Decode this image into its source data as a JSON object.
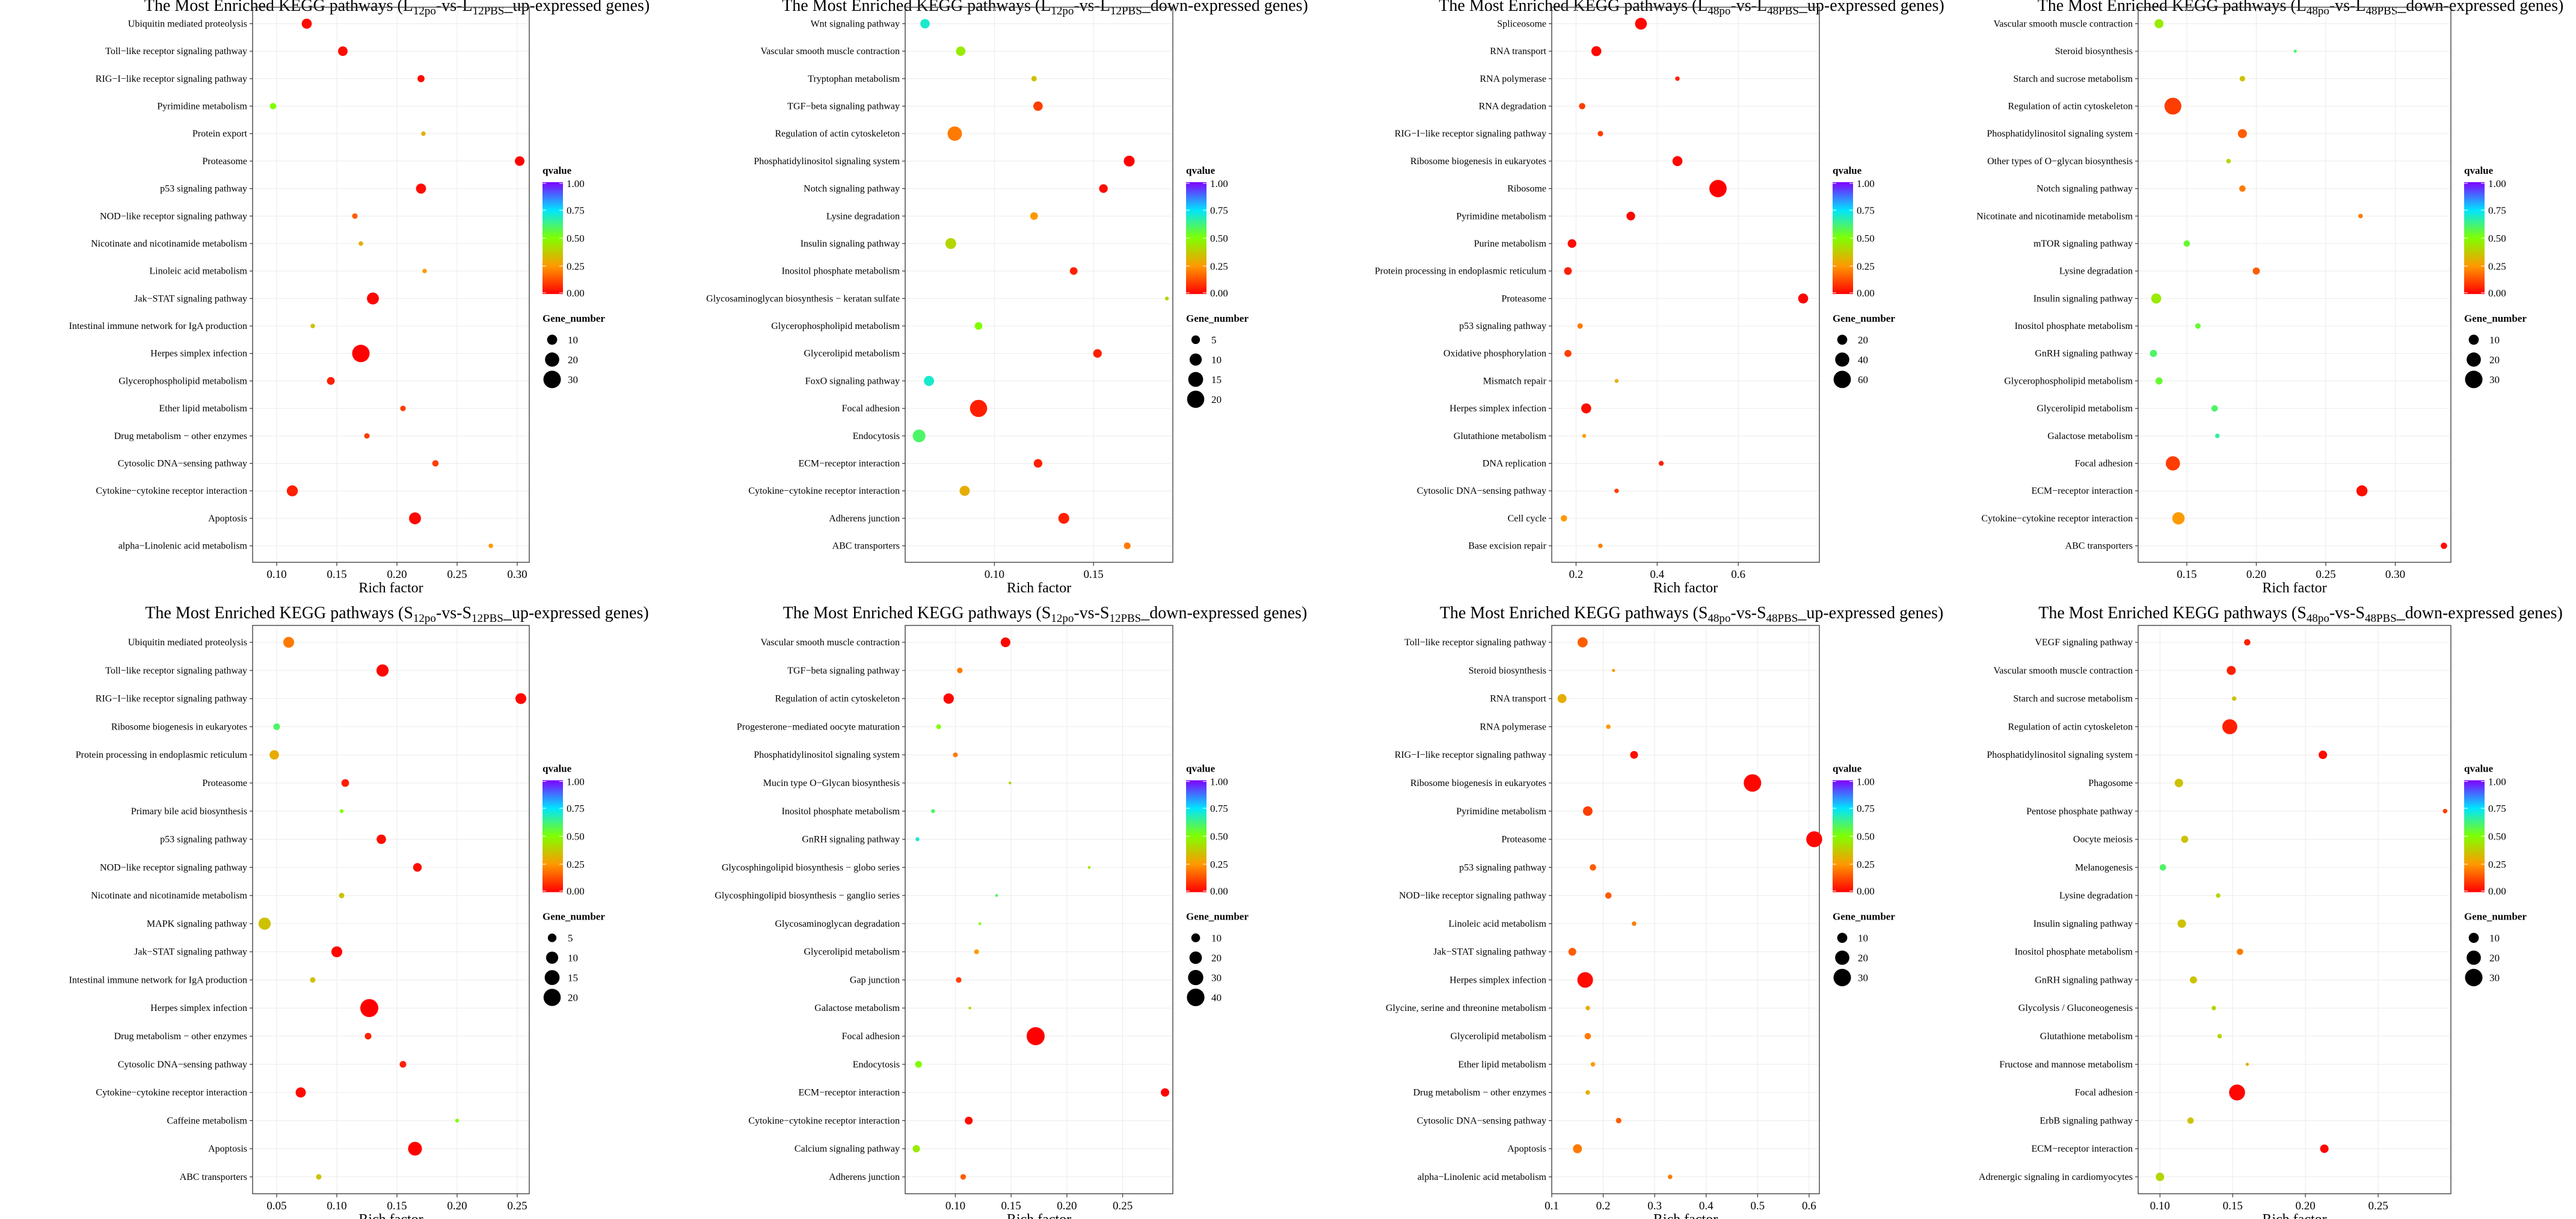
{
  "legend_labels": {
    "qvalue": "qvalue",
    "gene_number": "Gene_number",
    "qvalue_ticks": [
      "0.00",
      "0.25",
      "0.50",
      "0.75",
      "1.00"
    ]
  },
  "colorbar": {
    "stops": [
      {
        "offset": 0,
        "color": "#ff0000"
      },
      {
        "offset": 0.25,
        "color": "#ff9900"
      },
      {
        "offset": 0.5,
        "color": "#80ff00"
      },
      {
        "offset": 0.75,
        "color": "#00e5ff"
      },
      {
        "offset": 1,
        "color": "#8000ff"
      }
    ]
  },
  "chart_data": [
    {
      "type": "scatter",
      "title_parts": [
        "The Most Enriched KEGG pathways (L",
        "12po",
        "-vs-L",
        "12PBS",
        "_up-expressed genes)"
      ],
      "xlabel": "Rich factor",
      "xlim": [
        0.08,
        0.31
      ],
      "xticks": [
        0.1,
        0.15,
        0.2,
        0.25,
        0.3
      ],
      "xtick_labels": [
        "0.10",
        "0.15",
        "0.20",
        "0.25",
        "0.30"
      ],
      "size_legend": [
        10,
        20,
        30
      ],
      "size_max": 32,
      "categories": [
        "Ubiquitin mediated proteolysis",
        "Toll−like receptor signaling pathway",
        "RIG−I−like receptor signaling pathway",
        "Pyrimidine metabolism",
        "Protein export",
        "Proteasome",
        "p53 signaling pathway",
        "NOD−like receptor signaling pathway",
        "Nicotinate and nicotinamide metabolism",
        "Linoleic acid metabolism",
        "Jak−STAT signaling pathway",
        "Intestinal immune network for IgA production",
        "Herpes simplex infection",
        "Glycerophospholipid metabolism",
        "Ether lipid metabolism",
        "Drug metabolism − other enzymes",
        "Cytosolic DNA−sensing pathway",
        "Cytokine−cytokine receptor interaction",
        "Apoptosis",
        "alpha−Linolenic acid metabolism"
      ],
      "x": [
        0.125,
        0.155,
        0.22,
        0.097,
        0.222,
        0.302,
        0.22,
        0.165,
        0.17,
        0.223,
        0.18,
        0.13,
        0.17,
        0.145,
        0.205,
        0.175,
        0.232,
        0.113,
        0.215,
        0.278
      ],
      "gene_number": [
        10,
        9,
        5,
        4,
        2,
        9,
        10,
        3,
        2,
        2,
        14,
        2,
        30,
        6,
        3,
        3,
        4,
        12,
        14,
        2
      ],
      "qvalue": [
        0.02,
        0.02,
        0.02,
        0.5,
        0.3,
        0.0,
        0.02,
        0.15,
        0.3,
        0.25,
        0.01,
        0.35,
        0.0,
        0.05,
        0.1,
        0.1,
        0.1,
        0.05,
        0.01,
        0.25
      ]
    },
    {
      "type": "scatter",
      "title_parts": [
        "The Most Enriched KEGG pathways (L",
        "12po",
        "-vs-L",
        "12PBS",
        "_down-expressed genes)"
      ],
      "xlabel": "Rich factor",
      "xlim": [
        0.055,
        0.19
      ],
      "xticks": [
        0.1,
        0.15
      ],
      "xtick_labels": [
        "0.10",
        "0.15"
      ],
      "size_legend": [
        5,
        10,
        15,
        20
      ],
      "size_max": 22,
      "categories": [
        "Wnt signaling pathway",
        "Vascular smooth muscle contraction",
        "Tryptophan metabolism",
        "TGF−beta signaling pathway",
        "Regulation of actin cytoskeleton",
        "Phosphatidylinositol signaling system",
        "Notch signaling pathway",
        "Lysine degradation",
        "Insulin signaling pathway",
        "Inositol phosphate metabolism",
        "Glycosaminoglycan biosynthesis − keratan sulfate",
        "Glycerophospholipid metabolism",
        "Glycerolipid metabolism",
        "FoxO signaling pathway",
        "Focal adhesion",
        "Endocytosis",
        "ECM−receptor interaction",
        "Cytokine−cytokine receptor interaction",
        "Adherens junction",
        "ABC transporters"
      ],
      "x": [
        0.065,
        0.083,
        0.12,
        0.122,
        0.08,
        0.168,
        0.155,
        0.12,
        0.078,
        0.14,
        0.187,
        0.092,
        0.152,
        0.067,
        0.092,
        0.062,
        0.122,
        0.085,
        0.135,
        0.167
      ],
      "gene_number": [
        6,
        6,
        2,
        6,
        14,
        8,
        5,
        4,
        8,
        4,
        1,
        4,
        5,
        7,
        20,
        11,
        5,
        7,
        8,
        3
      ],
      "qvalue": [
        0.7,
        0.45,
        0.35,
        0.1,
        0.2,
        0.0,
        0.02,
        0.25,
        0.4,
        0.05,
        0.4,
        0.5,
        0.05,
        0.7,
        0.05,
        0.6,
        0.05,
        0.3,
        0.05,
        0.2
      ]
    },
    {
      "type": "scatter",
      "title_parts": [
        "The Most Enriched KEGG pathways (L",
        "48po",
        "-vs-L",
        "48PBS",
        "_up-expressed genes)"
      ],
      "xlabel": "Rich factor",
      "xlim": [
        0.14,
        0.8
      ],
      "xticks": [
        0.2,
        0.4,
        0.6
      ],
      "xtick_labels": [
        "0.2",
        "0.4",
        "0.6"
      ],
      "size_legend": [
        20,
        40,
        60
      ],
      "size_max": 65,
      "categories": [
        "Spliceosome",
        "RNA transport",
        "RNA polymerase",
        "RNA degradation",
        "RIG−I−like receptor signaling pathway",
        "Ribosome biogenesis in eukaryotes",
        "Ribosome",
        "Pyrimidine metabolism",
        "Purine metabolism",
        "Protein processing in endoplasmic reticulum",
        "Proteasome",
        "p53 signaling pathway",
        "Oxidative phosphorylation",
        "Mismatch repair",
        "Herpes simplex infection",
        "Glutathione metabolism",
        "DNA replication",
        "Cytosolic DNA−sensing pathway",
        "Cell cycle",
        "Base excision repair"
      ],
      "x": [
        0.36,
        0.25,
        0.45,
        0.215,
        0.26,
        0.45,
        0.55,
        0.335,
        0.19,
        0.18,
        0.76,
        0.21,
        0.18,
        0.3,
        0.225,
        0.22,
        0.41,
        0.3,
        0.17,
        0.26
      ],
      "gene_number": [
        28,
        20,
        4,
        8,
        6,
        20,
        60,
        15,
        15,
        12,
        20,
        6,
        10,
        3,
        20,
        3,
        5,
        4,
        8,
        4
      ],
      "qvalue": [
        0.01,
        0.01,
        0.05,
        0.1,
        0.1,
        0.01,
        0.0,
        0.01,
        0.02,
        0.05,
        0.0,
        0.2,
        0.1,
        0.3,
        0.02,
        0.25,
        0.05,
        0.1,
        0.25,
        0.2
      ]
    },
    {
      "type": "scatter",
      "title_parts": [
        "The Most Enriched KEGG pathways (L",
        "48po",
        "-vs-L",
        "48PBS",
        "_down-expressed genes)"
      ],
      "xlabel": "Rich factor",
      "xlim": [
        0.115,
        0.34
      ],
      "xticks": [
        0.15,
        0.2,
        0.25,
        0.3
      ],
      "xtick_labels": [
        "0.15",
        "0.20",
        "0.25",
        "0.30"
      ],
      "size_legend": [
        10,
        20,
        30
      ],
      "size_max": 32,
      "categories": [
        "Vascular smooth muscle contraction",
        "Steroid biosynthesis",
        "Starch and sucrose metabolism",
        "Regulation of actin cytoskeleton",
        "Phosphatidylinositol signaling system",
        "Other types of O−glycan biosynthesis",
        "Notch signaling pathway",
        "Nicotinate and nicotinamide metabolism",
        "mTOR signaling pathway",
        "Lysine degradation",
        "Insulin signaling pathway",
        "Inositol phosphate metabolism",
        "GnRH signaling pathway",
        "Glycerophospholipid metabolism",
        "Glycerolipid metabolism",
        "Galactose metabolism",
        "Focal adhesion",
        "ECM−receptor interaction",
        "Cytokine−cytokine receptor interaction",
        "ABC transporters"
      ],
      "x": [
        0.13,
        0.228,
        0.19,
        0.14,
        0.19,
        0.18,
        0.19,
        0.275,
        0.15,
        0.2,
        0.128,
        0.158,
        0.126,
        0.13,
        0.17,
        0.172,
        0.14,
        0.276,
        0.144,
        0.335
      ],
      "gene_number": [
        8,
        1,
        3,
        28,
        8,
        2,
        4,
        2,
        4,
        5,
        10,
        3,
        5,
        5,
        4,
        2,
        20,
        12,
        15,
        4
      ],
      "qvalue": [
        0.45,
        0.6,
        0.35,
        0.1,
        0.15,
        0.4,
        0.2,
        0.2,
        0.55,
        0.15,
        0.45,
        0.55,
        0.6,
        0.55,
        0.6,
        0.65,
        0.1,
        0.02,
        0.25,
        0.02
      ]
    },
    {
      "type": "scatter",
      "title_parts": [
        "The Most Enriched KEGG pathways (S",
        "12po",
        "-vs-S",
        "12PBS",
        "_up-expressed genes)"
      ],
      "xlabel": "Rich factor",
      "xlim": [
        0.03,
        0.26
      ],
      "xticks": [
        0.05,
        0.1,
        0.15,
        0.2,
        0.25
      ],
      "xtick_labels": [
        "0.05",
        "0.10",
        "0.15",
        "0.20",
        "0.25"
      ],
      "size_legend": [
        5,
        10,
        15,
        20
      ],
      "size_max": 22,
      "categories": [
        "Ubiquitin mediated proteolysis",
        "Toll−like receptor signaling pathway",
        "RIG−I−like receptor signaling pathway",
        "Ribosome biogenesis in eukaryotes",
        "Protein processing in endoplasmic reticulum",
        "Proteasome",
        "Primary bile acid biosynthesis",
        "p53 signaling pathway",
        "NOD−like receptor signaling pathway",
        "Nicotinate and nicotinamide metabolism",
        "MAPK signaling pathway",
        "Jak−STAT signaling pathway",
        "Intestinal immune network for IgA production",
        "Herpes simplex infection",
        "Drug metabolism − other enzymes",
        "Cytosolic DNA−sensing pathway",
        "Cytokine−cytokine receptor interaction",
        "Caffeine metabolism",
        "Apoptosis",
        "ABC transporters"
      ],
      "x": [
        0.06,
        0.138,
        0.253,
        0.05,
        0.048,
        0.107,
        0.104,
        0.137,
        0.167,
        0.104,
        0.04,
        0.1,
        0.08,
        0.127,
        0.126,
        0.155,
        0.07,
        0.2,
        0.165,
        0.085
      ],
      "gene_number": [
        8,
        10,
        8,
        3,
        6,
        4,
        1,
        6,
        5,
        2,
        10,
        8,
        2,
        22,
        3,
        3,
        7,
        1,
        13,
        2
      ],
      "qvalue": [
        0.2,
        0.01,
        0.01,
        0.6,
        0.3,
        0.05,
        0.5,
        0.02,
        0.02,
        0.35,
        0.35,
        0.01,
        0.35,
        0.0,
        0.05,
        0.05,
        0.02,
        0.5,
        0.0,
        0.35
      ]
    },
    {
      "type": "scatter",
      "title_parts": [
        "The Most Enriched KEGG pathways (S",
        "12po",
        "-vs-S",
        "12PBS",
        "_down-expressed genes)"
      ],
      "xlabel": "Rich factor",
      "xlim": [
        0.055,
        0.295
      ],
      "xticks": [
        0.1,
        0.15,
        0.2,
        0.25
      ],
      "xtick_labels": [
        "0.10",
        "0.15",
        "0.20",
        "0.25"
      ],
      "size_legend": [
        10,
        20,
        30,
        40
      ],
      "size_max": 42,
      "categories": [
        "Vascular smooth muscle contraction",
        "TGF−beta signaling pathway",
        "Regulation of actin cytoskeleton",
        "Progesterone−mediated oocyte maturation",
        "Phosphatidylinositol signaling system",
        "Mucin type O−Glycan biosynthesis",
        "Inositol phosphate metabolism",
        "GnRH signaling pathway",
        "Glycosphingolipid biosynthesis − globo series",
        "Glycosphingolipid biosynthesis − ganglio series",
        "Glycosaminoglycan degradation",
        "Glycerolipid metabolism",
        "Gap junction",
        "Galactose metabolism",
        "Focal adhesion",
        "Endocytosis",
        "ECM−receptor interaction",
        "Cytokine−cytokine receptor interaction",
        "Calcium signaling pathway",
        "Adherens junction"
      ],
      "x": [
        0.145,
        0.104,
        0.094,
        0.085,
        0.1,
        0.149,
        0.08,
        0.066,
        0.22,
        0.137,
        0.122,
        0.119,
        0.103,
        0.113,
        0.172,
        0.067,
        0.288,
        0.112,
        0.065,
        0.107
      ],
      "gene_number": [
        12,
        4,
        14,
        3,
        3,
        1,
        2,
        2,
        1,
        1,
        1,
        3,
        4,
        1,
        42,
        6,
        9,
        8,
        7,
        4
      ],
      "qvalue": [
        0.01,
        0.2,
        0.01,
        0.5,
        0.2,
        0.4,
        0.6,
        0.7,
        0.45,
        0.6,
        0.5,
        0.25,
        0.1,
        0.4,
        0.0,
        0.5,
        0.0,
        0.02,
        0.45,
        0.15
      ]
    },
    {
      "type": "scatter",
      "title_parts": [
        "The Most Enriched KEGG pathways (S",
        "48po",
        "-vs-S",
        "48PBS",
        "_up-expressed genes)"
      ],
      "xlabel": "Rich factor",
      "xlim": [
        0.1,
        0.62
      ],
      "xticks": [
        0.1,
        0.2,
        0.3,
        0.4,
        0.5,
        0.6
      ],
      "xtick_labels": [
        "0.1",
        "0.2",
        "0.3",
        "0.4",
        "0.5",
        "0.6"
      ],
      "size_legend": [
        10,
        20,
        30
      ],
      "size_max": 32,
      "categories": [
        "Toll−like receptor signaling pathway",
        "Steroid biosynthesis",
        "RNA transport",
        "RNA polymerase",
        "RIG−I−like receptor signaling pathway",
        "Ribosome biogenesis in eukaryotes",
        "Pyrimidine metabolism",
        "Proteasome",
        "p53 signaling pathway",
        "NOD−like receptor signaling pathway",
        "Linoleic acid metabolism",
        "Jak−STAT signaling pathway",
        "Herpes simplex infection",
        "Glycine, serine and threonine metabolism",
        "Glycerolipid metabolism",
        "Ether lipid metabolism",
        "Drug metabolism − other enzymes",
        "Cytosolic DNA−sensing pathway",
        "Apoptosis",
        "alpha−Linolenic acid metabolism"
      ],
      "x": [
        0.16,
        0.22,
        0.12,
        0.21,
        0.26,
        0.49,
        0.17,
        0.61,
        0.18,
        0.21,
        0.26,
        0.14,
        0.165,
        0.17,
        0.17,
        0.18,
        0.17,
        0.23,
        0.15,
        0.33
      ],
      "gene_number": [
        10,
        1,
        8,
        2,
        6,
        30,
        9,
        25,
        4,
        4,
        2,
        6,
        24,
        2,
        4,
        2,
        2,
        3,
        8,
        2
      ],
      "qvalue": [
        0.15,
        0.25,
        0.3,
        0.25,
        0.02,
        0.01,
        0.1,
        0.01,
        0.15,
        0.15,
        0.2,
        0.15,
        0.02,
        0.3,
        0.2,
        0.25,
        0.3,
        0.15,
        0.2,
        0.2
      ]
    },
    {
      "type": "scatter",
      "title_parts": [
        "The Most Enriched KEGG pathways (S",
        "48po",
        "-vs-S",
        "48PBS",
        "_down-expressed genes)"
      ],
      "xlabel": "Rich factor",
      "xlim": [
        0.085,
        0.3
      ],
      "xticks": [
        0.1,
        0.15,
        0.2,
        0.25
      ],
      "xtick_labels": [
        "0.10",
        "0.15",
        "0.20",
        "0.25"
      ],
      "size_legend": [
        10,
        20,
        30
      ],
      "size_max": 32,
      "categories": [
        "VEGF signaling pathway",
        "Vascular smooth muscle contraction",
        "Starch and sucrose metabolism",
        "Regulation of actin cytoskeleton",
        "Phosphatidylinositol signaling system",
        "Phagosome",
        "Pentose phosphate pathway",
        "Oocyte meiosis",
        "Melanogenesis",
        "Lysine degradation",
        "Insulin signaling pathway",
        "Inositol phosphate metabolism",
        "GnRH signaling pathway",
        "Glycolysis / Gluconeogenesis",
        "Glutathione metabolism",
        "Fructose and mannose metabolism",
        "Focal adhesion",
        "ErbB signaling pathway",
        "ECM−receptor interaction",
        "Adrenergic signaling in cardiomyocytes"
      ],
      "x": [
        0.16,
        0.149,
        0.151,
        0.148,
        0.212,
        0.113,
        0.296,
        0.117,
        0.102,
        0.14,
        0.115,
        0.155,
        0.123,
        0.137,
        0.141,
        0.16,
        0.153,
        0.121,
        0.213,
        0.1
      ],
      "gene_number": [
        4,
        8,
        2,
        22,
        7,
        7,
        2,
        5,
        4,
        2,
        7,
        4,
        5,
        2,
        2,
        1,
        25,
        4,
        7,
        7
      ],
      "qvalue": [
        0.05,
        0.05,
        0.35,
        0.05,
        0.02,
        0.35,
        0.1,
        0.35,
        0.6,
        0.4,
        0.35,
        0.2,
        0.35,
        0.4,
        0.4,
        0.3,
        0.01,
        0.35,
        0.01,
        0.4
      ]
    }
  ]
}
